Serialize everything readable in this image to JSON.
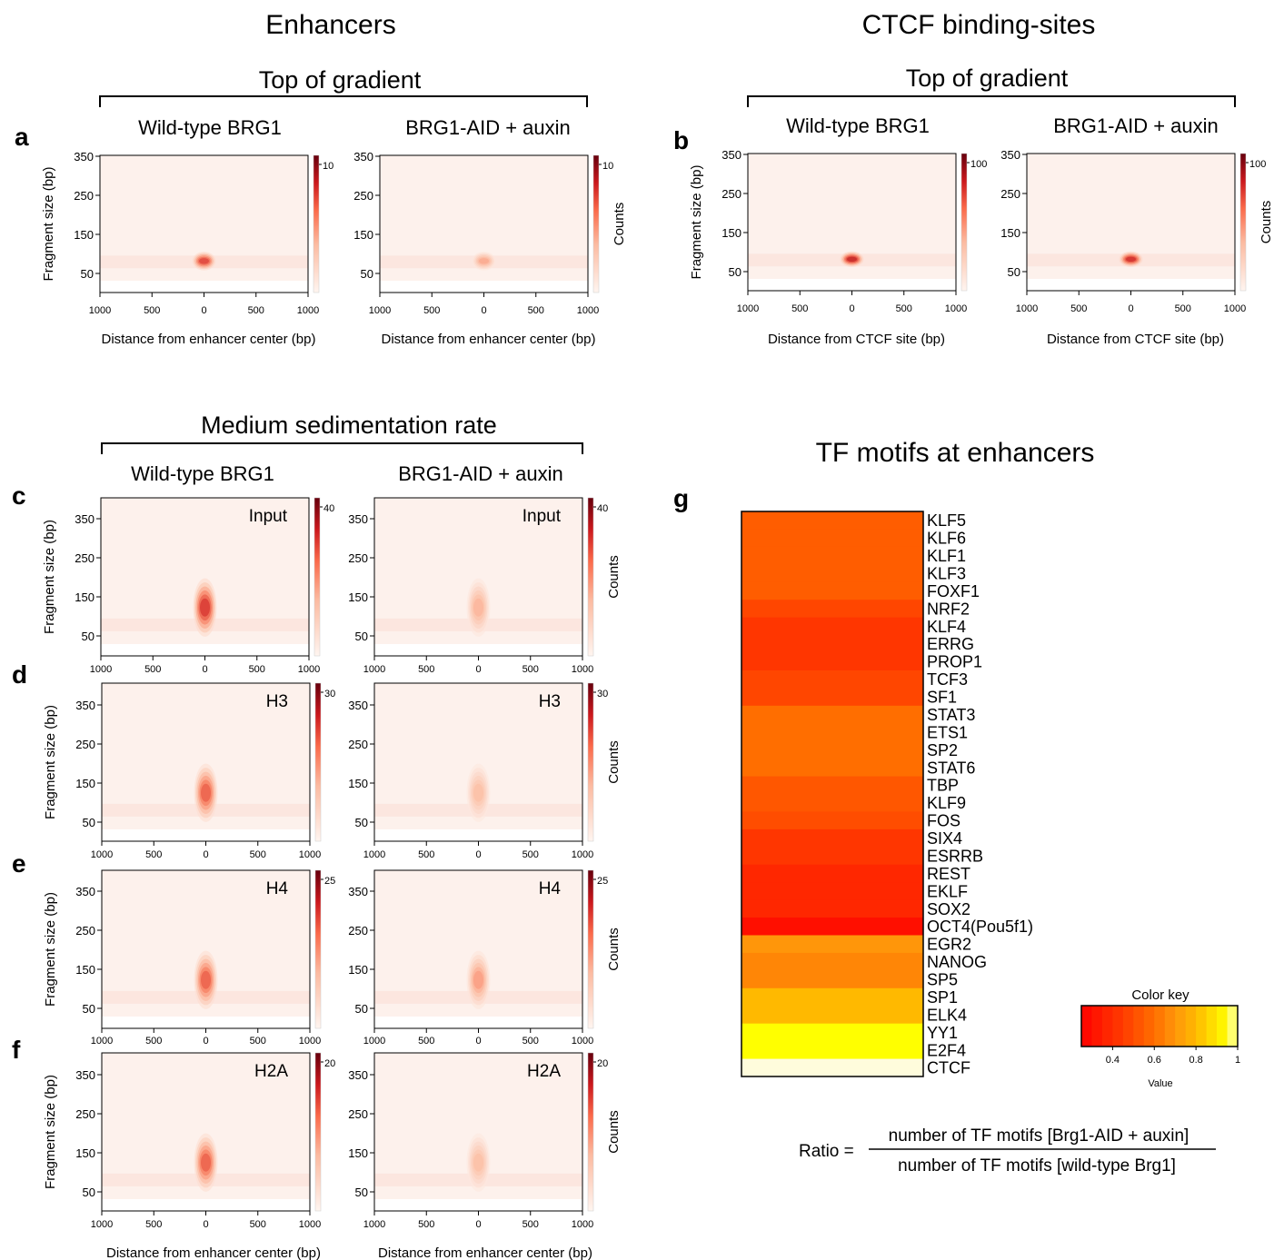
{
  "titles": {
    "enhancers": "Enhancers",
    "ctcf": "CTCF binding-sites",
    "top_gradient": "Top of gradient",
    "medium": "Medium sedimentation rate",
    "tf_motifs": "TF motifs at enhancers"
  },
  "columns": {
    "wildtype": "Wild-type BRG1",
    "aid": "BRG1-AID + auxin"
  },
  "panel_letters": [
    "a",
    "b",
    "c",
    "d",
    "e",
    "f",
    "g"
  ],
  "axis": {
    "ylabel": "Fragment size (bp)",
    "xlabel_enhancer": "Distance from enhancer center (bp)",
    "xlabel_ctcf": "Distance from CTCF site (bp)",
    "ytick_labels": [
      "50",
      "150",
      "250",
      "350"
    ],
    "xtick_labels": [
      "1000",
      "500",
      "0",
      "500",
      "1000"
    ],
    "colorbar_label": "Counts"
  },
  "chart_data": [
    {
      "type": "heatmap",
      "panel": "a",
      "condition": "Wild-type BRG1",
      "title": "Top of gradient",
      "xlabel": "Distance from enhancer center (bp)",
      "ylabel": "Fragment size (bp)",
      "xlim": [
        -1000,
        1000
      ],
      "ylim": [
        0,
        350
      ],
      "colorbar_max": 10,
      "hotspot": {
        "x": 0,
        "y": 55,
        "intensity": 0.85,
        "spread_y": 18
      }
    },
    {
      "type": "heatmap",
      "panel": "a",
      "condition": "BRG1-AID + auxin",
      "title": "Top of gradient",
      "xlabel": "Distance from enhancer center (bp)",
      "ylabel": "Fragment size (bp)",
      "xlim": [
        -1000,
        1000
      ],
      "ylim": [
        0,
        350
      ],
      "colorbar_max": 10,
      "hotspot": {
        "x": 0,
        "y": 55,
        "intensity": 0.45,
        "spread_y": 18
      }
    },
    {
      "type": "heatmap",
      "panel": "b",
      "condition": "Wild-type BRG1",
      "title": "Top of gradient",
      "xlabel": "Distance from CTCF site (bp)",
      "ylabel": "Fragment size (bp)",
      "xlim": [
        -1000,
        1000
      ],
      "ylim": [
        0,
        350
      ],
      "colorbar_max": 100,
      "hotspot": {
        "x": 0,
        "y": 55,
        "intensity": 1.0,
        "spread_y": 15
      }
    },
    {
      "type": "heatmap",
      "panel": "b",
      "condition": "BRG1-AID + auxin",
      "title": "Top of gradient",
      "xlabel": "Distance from CTCF site (bp)",
      "ylabel": "Fragment size (bp)",
      "xlim": [
        -1000,
        1000
      ],
      "ylim": [
        0,
        350
      ],
      "colorbar_max": 100,
      "hotspot": {
        "x": 0,
        "y": 55,
        "intensity": 0.95,
        "spread_y": 15
      }
    },
    {
      "type": "heatmap",
      "panel": "c",
      "condition": "Wild-type BRG1",
      "fraction": "Input",
      "xlim": [
        -1000,
        1000
      ],
      "ylim": [
        0,
        400
      ],
      "colorbar_max": 40,
      "hotspot": {
        "x": 0,
        "y": 100,
        "intensity": 0.9,
        "spread_y": 55
      }
    },
    {
      "type": "heatmap",
      "panel": "c",
      "condition": "BRG1-AID + auxin",
      "fraction": "Input",
      "xlim": [
        -1000,
        1000
      ],
      "ylim": [
        0,
        400
      ],
      "colorbar_max": 40,
      "hotspot": {
        "x": 0,
        "y": 100,
        "intensity": 0.4,
        "spread_y": 55
      }
    },
    {
      "type": "heatmap",
      "panel": "d",
      "condition": "Wild-type BRG1",
      "fraction": "H3",
      "xlim": [
        -1000,
        1000
      ],
      "ylim": [
        0,
        400
      ],
      "colorbar_max": 30,
      "hotspot": {
        "x": 0,
        "y": 100,
        "intensity": 0.75,
        "spread_y": 55
      }
    },
    {
      "type": "heatmap",
      "panel": "d",
      "condition": "BRG1-AID + auxin",
      "fraction": "H3",
      "xlim": [
        -1000,
        1000
      ],
      "ylim": [
        0,
        400
      ],
      "colorbar_max": 30,
      "hotspot": {
        "x": 0,
        "y": 100,
        "intensity": 0.35,
        "spread_y": 55
      }
    },
    {
      "type": "heatmap",
      "panel": "e",
      "condition": "Wild-type BRG1",
      "fraction": "H4",
      "xlim": [
        -1000,
        1000
      ],
      "ylim": [
        0,
        400
      ],
      "colorbar_max": 25,
      "hotspot": {
        "x": 0,
        "y": 100,
        "intensity": 0.75,
        "spread_y": 55
      }
    },
    {
      "type": "heatmap",
      "panel": "e",
      "condition": "BRG1-AID + auxin",
      "fraction": "H4",
      "xlim": [
        -1000,
        1000
      ],
      "ylim": [
        0,
        400
      ],
      "colorbar_max": 25,
      "hotspot": {
        "x": 0,
        "y": 100,
        "intensity": 0.5,
        "spread_y": 55
      }
    },
    {
      "type": "heatmap",
      "panel": "f",
      "condition": "Wild-type BRG1",
      "fraction": "H2A",
      "xlabel": "Distance from enhancer center (bp)",
      "xlim": [
        -1000,
        1000
      ],
      "ylim": [
        0,
        400
      ],
      "colorbar_max": 20,
      "hotspot": {
        "x": 0,
        "y": 100,
        "intensity": 0.75,
        "spread_y": 55
      }
    },
    {
      "type": "heatmap",
      "panel": "f",
      "condition": "BRG1-AID + auxin",
      "fraction": "H2A",
      "xlabel": "Distance from enhancer center (bp)",
      "xlim": [
        -1000,
        1000
      ],
      "ylim": [
        0,
        400
      ],
      "colorbar_max": 20,
      "hotspot": {
        "x": 0,
        "y": 100,
        "intensity": 0.35,
        "spread_y": 55
      }
    },
    {
      "type": "heatmap",
      "panel": "g",
      "title": "TF motifs at enhancers",
      "rows": [
        "KLF5",
        "KLF6",
        "KLF1",
        "KLF3",
        "FOXF1",
        "NRF2",
        "KLF4",
        "ERRG",
        "PROP1",
        "TCF3",
        "SF1",
        "STAT3",
        "ETS1",
        "SP2",
        "STAT6",
        "TBP",
        "KLF9",
        "FOS",
        "SIX4",
        "ESRRB",
        "REST",
        "EKLF",
        "SOX2",
        "OCT4(Pou5f1)",
        "EGR2",
        "NANOG",
        "SP5",
        "SP1",
        "ELK4",
        "YY1",
        "E2F4",
        "CTCF"
      ],
      "values": [
        0.55,
        0.55,
        0.55,
        0.55,
        0.55,
        0.48,
        0.43,
        0.43,
        0.43,
        0.48,
        0.48,
        0.6,
        0.6,
        0.6,
        0.6,
        0.53,
        0.53,
        0.5,
        0.43,
        0.43,
        0.38,
        0.38,
        0.38,
        0.3,
        0.7,
        0.66,
        0.66,
        0.8,
        0.8,
        0.95,
        0.95,
        1.0
      ],
      "color_key": {
        "title": "Color key",
        "xlabel": "Value",
        "ticks": [
          0.4,
          0.6,
          0.8,
          1
        ],
        "tick_labels": [
          "0.4",
          "0.6",
          "0.8",
          "1"
        ],
        "range": [
          0.25,
          1.0
        ]
      }
    }
  ],
  "panel_labels": {
    "input": "Input",
    "h3": "H3",
    "h4": "H4",
    "h2a": "H2A"
  },
  "formula": {
    "lhs": "Ratio =",
    "numerator": "number of TF motifs [Brg1-AID + auxin]",
    "denominator": "number of TF motifs [wild-type Brg1]"
  },
  "colors": {
    "heat_low": "#fdf1ec",
    "heat_mid": "#ee6a4d",
    "heat_high": "#7f0000"
  }
}
